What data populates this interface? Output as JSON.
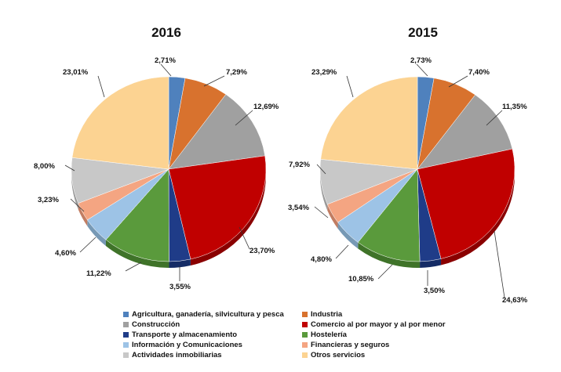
{
  "chart_data": {
    "type": "pie",
    "categories": [
      "Agricultura, ganadería, silvicultura y pesca",
      "Industria",
      "Construcción",
      "Comercio al por mayor y al por menor",
      "Transporte y almacenamiento",
      "Hostelería",
      "Información y Comunicaciones",
      "Financieras y seguros",
      "Actividades inmobiliarias",
      "Otros servicios"
    ],
    "colors": [
      "#4f81bd",
      "#d8722e",
      "#a0a0a0",
      "#c00000",
      "#1f3c88",
      "#5a9a3c",
      "#9dc3e6",
      "#f4a582",
      "#c8c8c8",
      "#fcd392"
    ],
    "side_colors": [
      "#3a6391",
      "#a8581f",
      "#7a7a7a",
      "#8a0000",
      "#152c66",
      "#3f7329",
      "#7799b5",
      "#c27d62",
      "#9a9a9a",
      "#c9a46c"
    ],
    "legend_placement": "bottom",
    "charts": [
      {
        "title": "2016",
        "values": [
          2.71,
          7.29,
          12.69,
          23.7,
          3.55,
          11.22,
          4.6,
          3.23,
          8.0,
          23.01
        ],
        "labels": [
          "2,71%",
          "7,29%",
          "12,69%",
          "23,70%",
          "3,55%",
          "11,22%",
          "4,60%",
          "3,23%",
          "8,00%",
          "23,01%"
        ]
      },
      {
        "title": "2015",
        "values": [
          2.73,
          7.4,
          11.35,
          24.63,
          3.5,
          10.85,
          4.8,
          3.54,
          7.92,
          23.29
        ],
        "labels": [
          "2,73%",
          "7,40%",
          "11,35%",
          "24,63%",
          "3,50%",
          "10,85%",
          "4,80%",
          "3,54%",
          "7,92%",
          "23,29%"
        ]
      }
    ]
  }
}
